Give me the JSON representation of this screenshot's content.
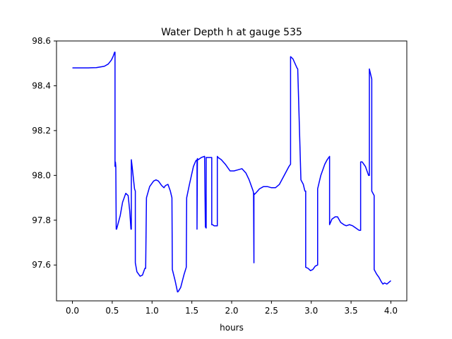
{
  "chart_data": {
    "type": "line",
    "title": "Water Depth h at gauge 535",
    "xlabel": "hours",
    "ylabel": "",
    "xlim": [
      -0.2,
      4.2
    ],
    "ylim": [
      97.44,
      98.6
    ],
    "xticks": [
      0.0,
      0.5,
      1.0,
      1.5,
      2.0,
      2.5,
      3.0,
      3.5,
      4.0
    ],
    "xtick_labels": [
      "0.0",
      "0.5",
      "1.0",
      "1.5",
      "2.0",
      "2.5",
      "3.0",
      "3.5",
      "4.0"
    ],
    "yticks": [
      97.6,
      97.8,
      98.0,
      98.2,
      98.4,
      98.6
    ],
    "ytick_labels": [
      "97.6",
      "97.8",
      "98.0",
      "98.2",
      "98.4",
      "98.6"
    ],
    "grid": false,
    "series": [
      {
        "color": "#0000ff",
        "x": [
          0.0,
          0.2,
          0.3,
          0.4,
          0.45,
          0.49,
          0.51,
          0.53,
          0.535,
          0.535,
          0.54,
          0.545,
          0.55,
          0.555,
          0.6,
          0.63,
          0.67,
          0.7,
          0.72,
          0.735,
          0.74,
          0.74,
          0.75,
          0.78,
          0.79,
          0.79,
          0.81,
          0.85,
          0.88,
          0.91,
          0.92,
          0.93,
          0.97,
          1.02,
          1.05,
          1.08,
          1.12,
          1.15,
          1.17,
          1.2,
          1.23,
          1.25,
          1.255,
          1.29,
          1.32,
          1.33,
          1.36,
          1.4,
          1.43,
          1.435,
          1.47,
          1.52,
          1.55,
          1.565,
          1.565,
          1.57,
          1.57,
          1.58,
          1.62,
          1.66,
          1.67,
          1.68,
          1.68,
          1.69,
          1.75,
          1.75,
          1.76,
          1.78,
          1.82,
          1.82,
          1.83,
          1.87,
          1.92,
          1.98,
          2.03,
          2.08,
          2.13,
          2.18,
          2.22,
          2.27,
          2.275,
          2.28,
          2.28,
          2.285,
          2.3,
          2.35,
          2.4,
          2.45,
          2.5,
          2.55,
          2.6,
          2.66,
          2.72,
          2.74,
          2.74,
          2.77,
          2.82,
          2.83,
          2.87,
          2.9,
          2.92,
          2.93,
          2.93,
          2.96,
          2.99,
          3.02,
          3.05,
          3.08,
          3.08,
          3.12,
          3.17,
          3.2,
          3.23,
          3.23,
          3.26,
          3.3,
          3.33,
          3.37,
          3.41,
          3.44,
          3.48,
          3.52,
          3.56,
          3.6,
          3.62,
          3.62,
          3.64,
          3.68,
          3.72,
          3.73,
          3.73,
          3.76,
          3.76,
          3.79,
          3.79,
          3.82,
          3.85,
          3.88,
          3.9,
          3.92,
          3.95,
          4.0
        ],
        "y": [
          98.48,
          98.48,
          98.481,
          98.487,
          98.497,
          98.515,
          98.53,
          98.55,
          98.55,
          98.04,
          98.06,
          98.04,
          97.76,
          97.76,
          97.82,
          97.88,
          97.92,
          97.91,
          97.84,
          97.76,
          97.76,
          98.07,
          98.04,
          97.94,
          97.93,
          97.61,
          97.57,
          97.55,
          97.555,
          97.585,
          97.585,
          97.9,
          97.95,
          97.975,
          97.98,
          97.975,
          97.955,
          97.945,
          97.955,
          97.96,
          97.93,
          97.9,
          97.58,
          97.53,
          97.48,
          97.482,
          97.5,
          97.555,
          97.59,
          97.9,
          97.96,
          98.04,
          98.065,
          98.07,
          97.76,
          98.07,
          98.075,
          98.07,
          98.08,
          98.085,
          97.77,
          97.765,
          98.08,
          98.08,
          98.08,
          97.78,
          97.78,
          97.775,
          97.775,
          98.085,
          98.08,
          98.07,
          98.05,
          98.02,
          98.02,
          98.025,
          98.03,
          98.01,
          97.98,
          97.93,
          97.92,
          97.61,
          97.92,
          97.915,
          97.92,
          97.94,
          97.95,
          97.95,
          97.945,
          97.945,
          97.96,
          98.0,
          98.04,
          98.05,
          98.53,
          98.52,
          98.48,
          98.475,
          97.98,
          97.96,
          97.93,
          97.93,
          97.59,
          97.585,
          97.575,
          97.58,
          97.595,
          97.6,
          97.94,
          98.0,
          98.05,
          98.07,
          98.085,
          97.78,
          97.805,
          97.815,
          97.815,
          97.79,
          97.78,
          97.775,
          97.78,
          97.775,
          97.765,
          97.755,
          97.755,
          98.06,
          98.06,
          98.04,
          98.0,
          98.0,
          98.475,
          98.43,
          97.93,
          97.91,
          97.58,
          97.56,
          97.545,
          97.525,
          97.515,
          97.52,
          97.515,
          97.53
        ]
      }
    ]
  }
}
